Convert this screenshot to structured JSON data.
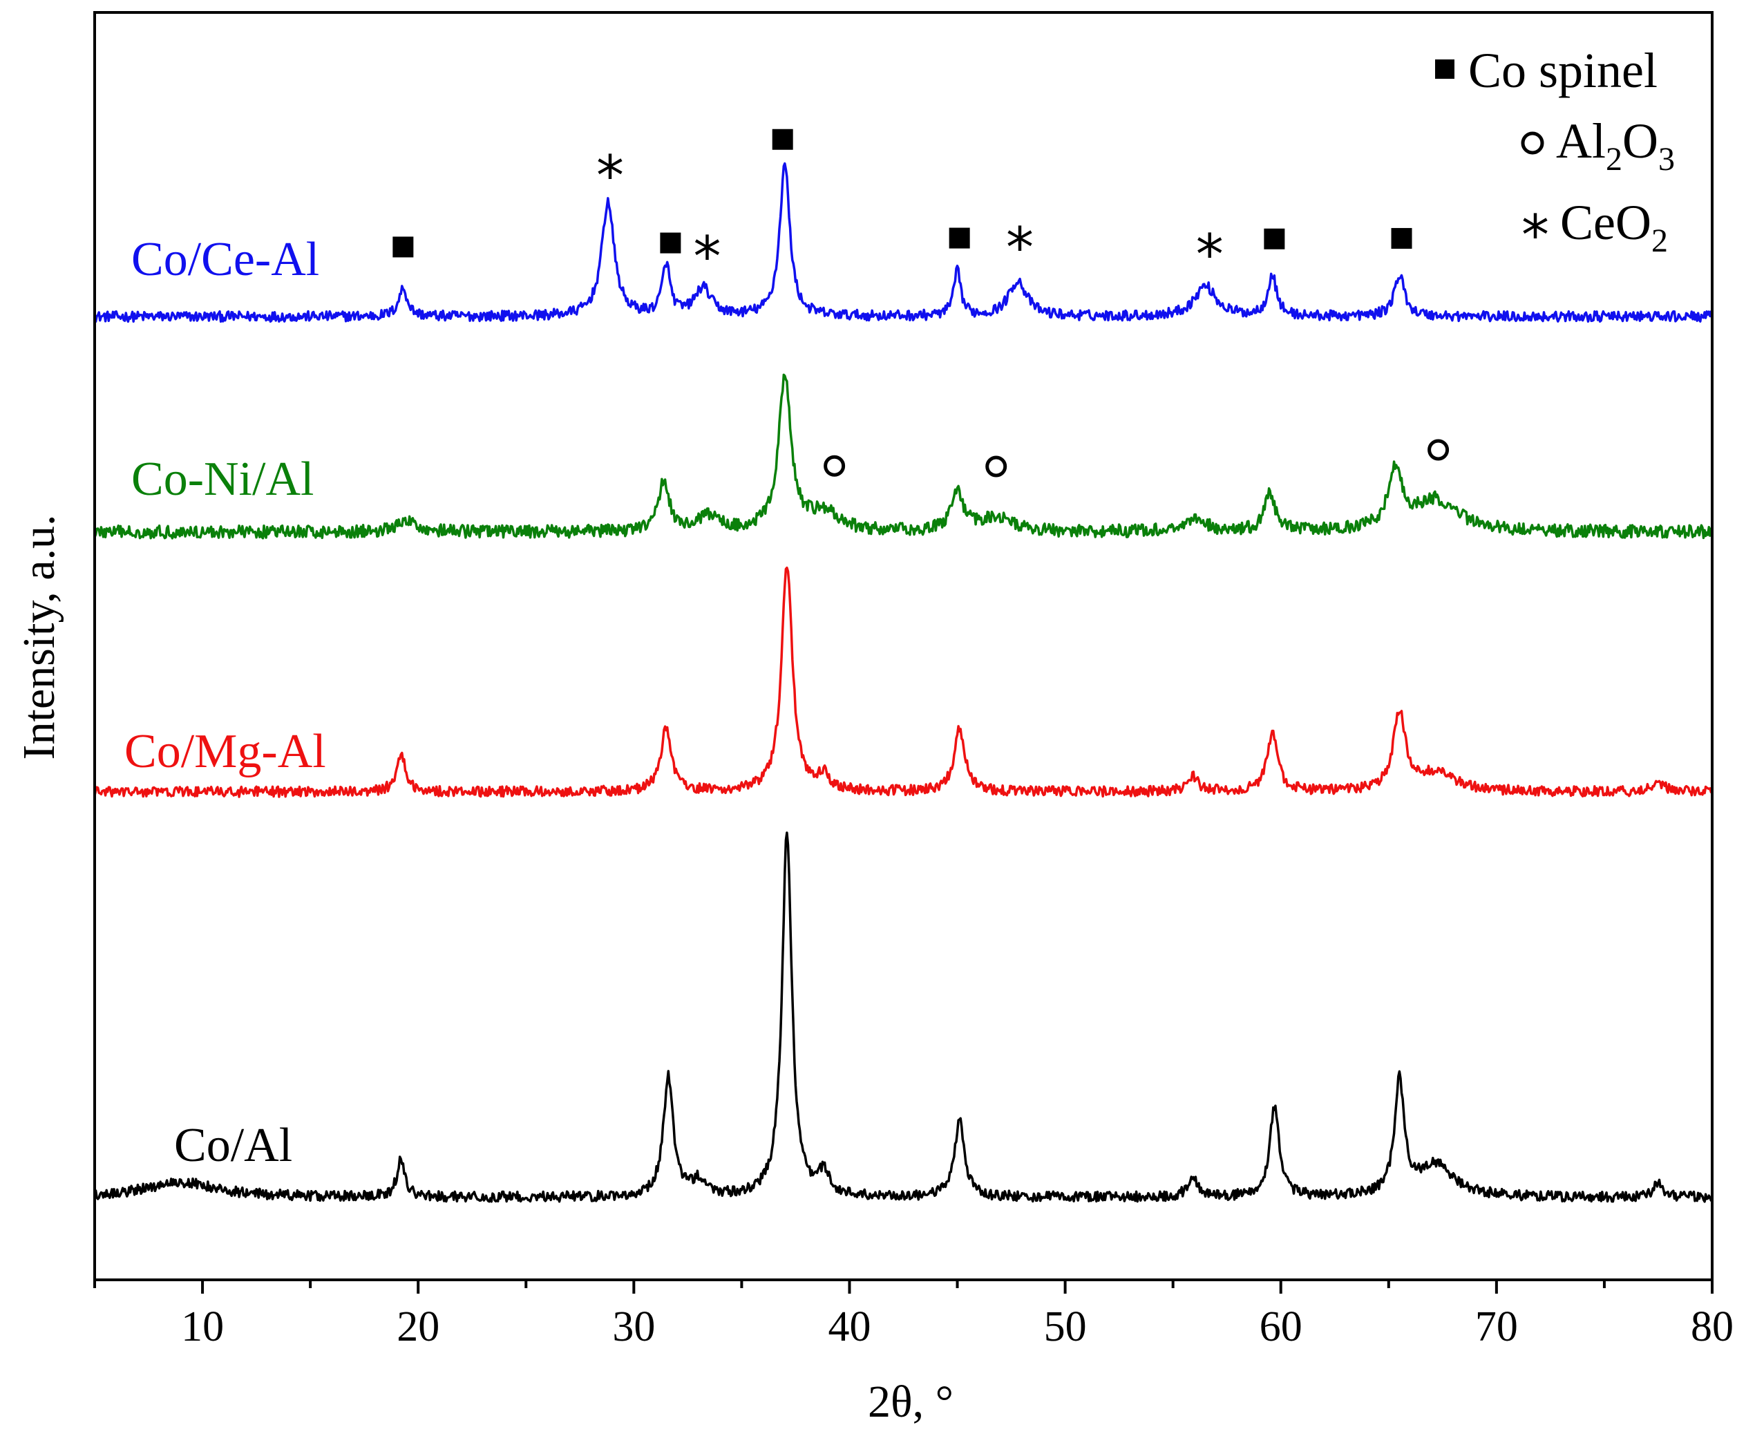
{
  "chart_data": {
    "type": "line",
    "title": "",
    "xlabel": "2θ, °",
    "ylabel": "Intensity, a.u.",
    "xlim": [
      5,
      80
    ],
    "xticks": [
      10,
      20,
      30,
      40,
      50,
      60,
      70,
      80
    ],
    "ylim": [
      0,
      1
    ],
    "yticks_shown": false,
    "series": [
      {
        "name": "Co/Ce-Al",
        "color": "#1010ee",
        "baseline": 0.76,
        "noise": 0.004,
        "peaks": [
          {
            "x": 19.3,
            "h": 0.022,
            "w": 0.25
          },
          {
            "x": 28.8,
            "h": 0.09,
            "w": 0.35
          },
          {
            "x": 31.5,
            "h": 0.04,
            "w": 0.22
          },
          {
            "x": 33.2,
            "h": 0.022,
            "w": 0.45
          },
          {
            "x": 37.0,
            "h": 0.12,
            "w": 0.28
          },
          {
            "x": 45.0,
            "h": 0.035,
            "w": 0.2
          },
          {
            "x": 47.8,
            "h": 0.028,
            "w": 0.5
          },
          {
            "x": 56.5,
            "h": 0.024,
            "w": 0.6
          },
          {
            "x": 59.6,
            "h": 0.032,
            "w": 0.25
          },
          {
            "x": 65.5,
            "h": 0.032,
            "w": 0.3
          }
        ]
      },
      {
        "name": "Co-Ni/Al",
        "color": "#0a800a",
        "baseline": 0.59,
        "noise": 0.005,
        "peaks": [
          {
            "x": 19.5,
            "h": 0.008,
            "w": 0.6
          },
          {
            "x": 31.4,
            "h": 0.04,
            "w": 0.3
          },
          {
            "x": 33.5,
            "h": 0.012,
            "w": 0.6
          },
          {
            "x": 37.0,
            "h": 0.12,
            "w": 0.35
          },
          {
            "x": 38.8,
            "h": 0.015,
            "w": 0.8
          },
          {
            "x": 45.0,
            "h": 0.03,
            "w": 0.35
          },
          {
            "x": 46.8,
            "h": 0.012,
            "w": 0.8
          },
          {
            "x": 56.0,
            "h": 0.01,
            "w": 0.6
          },
          {
            "x": 59.5,
            "h": 0.03,
            "w": 0.3
          },
          {
            "x": 65.3,
            "h": 0.045,
            "w": 0.4
          },
          {
            "x": 67.2,
            "h": 0.025,
            "w": 1.2
          }
        ]
      },
      {
        "name": "Co/Mg-Al",
        "color": "#ee1111",
        "baseline": 0.385,
        "noise": 0.004,
        "peaks": [
          {
            "x": 19.2,
            "h": 0.03,
            "w": 0.25
          },
          {
            "x": 31.5,
            "h": 0.05,
            "w": 0.3
          },
          {
            "x": 37.1,
            "h": 0.18,
            "w": 0.3
          },
          {
            "x": 38.8,
            "h": 0.012,
            "w": 0.3
          },
          {
            "x": 45.1,
            "h": 0.05,
            "w": 0.3
          },
          {
            "x": 55.9,
            "h": 0.012,
            "w": 0.3
          },
          {
            "x": 59.6,
            "h": 0.045,
            "w": 0.3
          },
          {
            "x": 65.5,
            "h": 0.06,
            "w": 0.35
          },
          {
            "x": 67.2,
            "h": 0.015,
            "w": 1.0
          },
          {
            "x": 77.5,
            "h": 0.006,
            "w": 0.4
          }
        ]
      },
      {
        "name": "Co/Al",
        "color": "#000000",
        "baseline": 0.065,
        "noise": 0.004,
        "peaks": [
          {
            "x": 9.0,
            "h": 0.012,
            "w": 2.0
          },
          {
            "x": 19.2,
            "h": 0.03,
            "w": 0.22
          },
          {
            "x": 31.6,
            "h": 0.095,
            "w": 0.28
          },
          {
            "x": 33.0,
            "h": 0.012,
            "w": 0.4
          },
          {
            "x": 37.1,
            "h": 0.29,
            "w": 0.27
          },
          {
            "x": 38.8,
            "h": 0.018,
            "w": 0.3
          },
          {
            "x": 45.1,
            "h": 0.06,
            "w": 0.28
          },
          {
            "x": 55.9,
            "h": 0.015,
            "w": 0.28
          },
          {
            "x": 59.7,
            "h": 0.07,
            "w": 0.27
          },
          {
            "x": 65.5,
            "h": 0.09,
            "w": 0.27
          },
          {
            "x": 67.2,
            "h": 0.025,
            "w": 1.0
          },
          {
            "x": 77.5,
            "h": 0.01,
            "w": 0.3
          }
        ]
      }
    ],
    "series_labels": [
      {
        "text": "Co/Ce-Al",
        "color": "#1010ee"
      },
      {
        "text": "Co-Ni/Al",
        "color": "#0a800a"
      },
      {
        "text": "Co/Mg-Al",
        "color": "#ee1111"
      },
      {
        "text": "Co/Al",
        "color": "#000000"
      }
    ],
    "annotations": {
      "co_spinel": [
        19.3,
        31.7,
        36.9,
        45.1,
        59.7,
        65.6
      ],
      "ceo2": [
        28.9,
        33.4,
        47.9,
        56.7
      ],
      "al2o3": [
        39.3,
        46.8,
        67.3
      ]
    },
    "legend": {
      "position": "top-right",
      "entries": [
        {
          "marker": "square",
          "text": "Co spinel"
        },
        {
          "marker": "circle",
          "text": "Al",
          "sub1": "2",
          "mid": "O",
          "sub2": "3"
        },
        {
          "marker": "star",
          "text": "*",
          "main": "CeO",
          "sub": "2"
        }
      ]
    }
  }
}
